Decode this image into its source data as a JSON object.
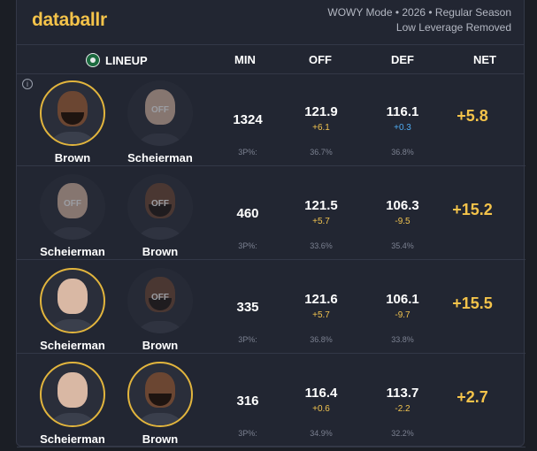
{
  "brand": "databallr",
  "meta": {
    "line1": "WOWY Mode • 2026 • Regular Season",
    "line2": "Low Leverage Removed"
  },
  "columns": {
    "lineup": "LINEUP",
    "min": "MIN",
    "off": "OFF",
    "def": "DEF",
    "net": "NET"
  },
  "off_label": "OFF",
  "info_icon": "i",
  "rows": [
    {
      "p1": {
        "name": "Brown",
        "status": "on",
        "skin": "dark"
      },
      "p2": {
        "name": "Scheierman",
        "status": "off",
        "skin": "light"
      },
      "min": "1324",
      "min_sub": "3P%:",
      "off": "121.9",
      "off_sub": "+6.1",
      "off_pct": "36.7%",
      "def": "116.1",
      "def_sub": "+0.3",
      "def_pct": "36.8%",
      "def_sub_color": "blue",
      "net": "+5.8"
    },
    {
      "p1": {
        "name": "Scheierman",
        "status": "off",
        "skin": "light"
      },
      "p2": {
        "name": "Brown",
        "status": "off",
        "skin": "dark"
      },
      "min": "460",
      "min_sub": "3P%:",
      "off": "121.5",
      "off_sub": "+5.7",
      "off_pct": "33.6%",
      "def": "106.3",
      "def_sub": "-9.5",
      "def_pct": "35.4%",
      "def_sub_color": "gold",
      "net": "+15.2"
    },
    {
      "p1": {
        "name": "Scheierman",
        "status": "on",
        "skin": "light"
      },
      "p2": {
        "name": "Brown",
        "status": "off",
        "skin": "dark"
      },
      "min": "335",
      "min_sub": "3P%:",
      "off": "121.6",
      "off_sub": "+5.7",
      "off_pct": "36.8%",
      "def": "106.1",
      "def_sub": "-9.7",
      "def_pct": "33.8%",
      "def_sub_color": "gold",
      "net": "+15.5"
    },
    {
      "p1": {
        "name": "Scheierman",
        "status": "on",
        "skin": "light"
      },
      "p2": {
        "name": "Brown",
        "status": "on",
        "skin": "dark"
      },
      "min": "316",
      "min_sub": "3P%:",
      "off": "116.4",
      "off_sub": "+0.6",
      "off_pct": "34.9%",
      "def": "113.7",
      "def_sub": "-2.2",
      "def_pct": "32.2%",
      "def_sub_color": "gold",
      "net": "+2.7"
    }
  ]
}
